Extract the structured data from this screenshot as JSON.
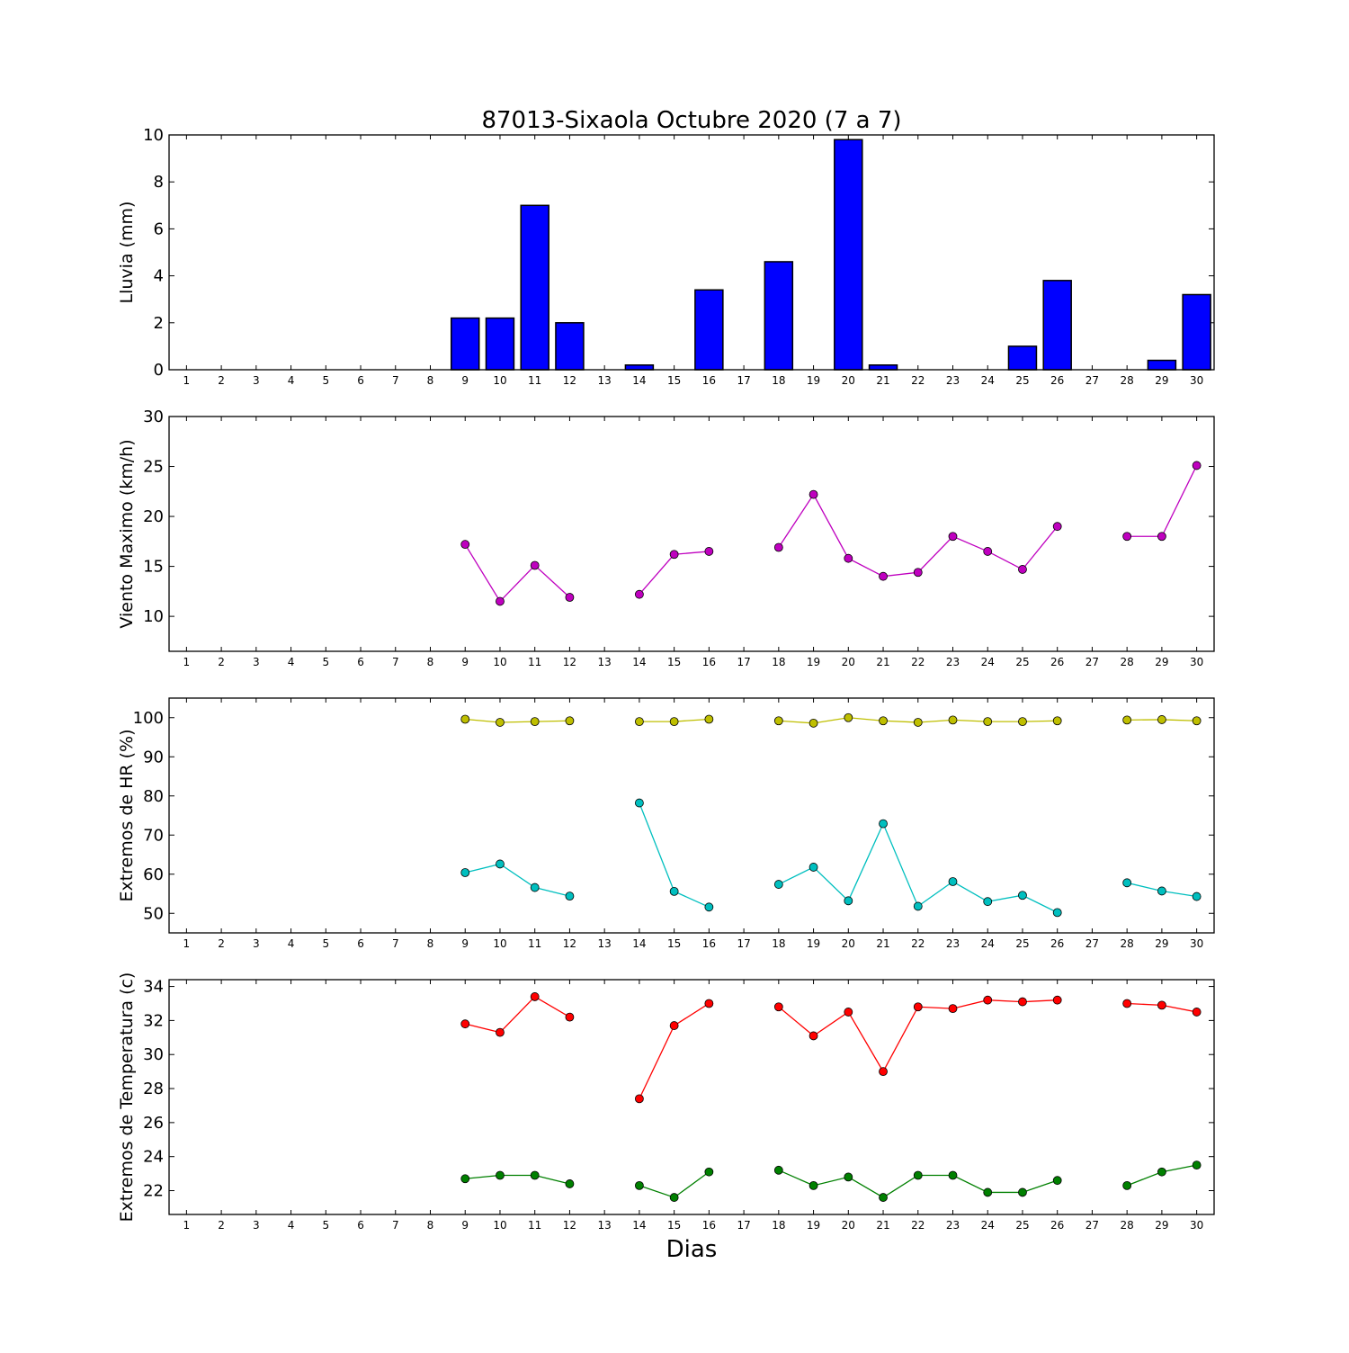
{
  "chart_data": {
    "title": "87013-Sixaola Octubre 2020  (7 a 7)",
    "xlabel": "Dias",
    "x": [
      1,
      2,
      3,
      4,
      5,
      6,
      7,
      8,
      9,
      10,
      11,
      12,
      13,
      14,
      15,
      16,
      17,
      18,
      19,
      20,
      21,
      22,
      23,
      24,
      25,
      26,
      27,
      28,
      29,
      30
    ],
    "panels": [
      {
        "type": "bar",
        "ylabel": "Lluvia (mm)",
        "ylim": [
          0,
          10
        ],
        "yticks": [
          0,
          2,
          4,
          6,
          8,
          10
        ],
        "series": [
          {
            "color": "#0000ff",
            "values": [
              0,
              0,
              0,
              0,
              0,
              0,
              0,
              0,
              2.2,
              2.2,
              7.0,
              2.0,
              0,
              0.2,
              0,
              3.4,
              0,
              4.6,
              0,
              9.8,
              0.2,
              0,
              0,
              0,
              1.0,
              3.8,
              0,
              0,
              0.4,
              3.2
            ]
          }
        ]
      },
      {
        "type": "line",
        "ylabel": "Viento Maximo (km/h)",
        "ylim": [
          6.5,
          30
        ],
        "yticks": [
          10,
          15,
          20,
          25,
          30
        ],
        "series": [
          {
            "color": "#bf00bf",
            "values": [
              null,
              null,
              null,
              null,
              null,
              null,
              null,
              null,
              17.2,
              11.5,
              15.1,
              11.9,
              null,
              12.2,
              16.2,
              16.5,
              null,
              16.9,
              22.2,
              15.8,
              14.0,
              14.4,
              18.0,
              16.5,
              14.7,
              19.0,
              null,
              18.0,
              18.0,
              25.1
            ]
          }
        ]
      },
      {
        "type": "line",
        "ylabel": "Extremos de HR (%)",
        "ylim": [
          45,
          105
        ],
        "yticks": [
          50,
          60,
          70,
          80,
          90,
          100
        ],
        "series": [
          {
            "color": "#bfbf00",
            "values": [
              null,
              null,
              null,
              null,
              null,
              null,
              null,
              null,
              99.6,
              98.8,
              99.0,
              99.2,
              null,
              99.0,
              99.0,
              99.6,
              null,
              99.2,
              98.6,
              100.0,
              99.2,
              98.8,
              99.4,
              99.0,
              99.0,
              99.2,
              null,
              99.4,
              99.5,
              99.2
            ]
          },
          {
            "color": "#00bfbf",
            "values": [
              null,
              null,
              null,
              null,
              null,
              null,
              null,
              null,
              60.4,
              62.6,
              56.6,
              54.4,
              null,
              78.2,
              55.6,
              51.6,
              null,
              57.4,
              61.8,
              53.2,
              72.9,
              51.8,
              58.1,
              53.0,
              54.6,
              50.2,
              null,
              57.8,
              55.7,
              54.3
            ]
          }
        ]
      },
      {
        "type": "line",
        "ylabel": "Extremos de Temperatura (c)",
        "ylim": [
          20.6,
          34.4
        ],
        "yticks": [
          22,
          24,
          26,
          28,
          30,
          32,
          34
        ],
        "series": [
          {
            "color": "#ff0000",
            "values": [
              null,
              null,
              null,
              null,
              null,
              null,
              null,
              null,
              31.8,
              31.3,
              33.4,
              32.2,
              null,
              27.4,
              31.7,
              33.0,
              null,
              32.8,
              31.1,
              32.5,
              29.0,
              32.8,
              32.7,
              33.2,
              33.1,
              33.2,
              null,
              33.0,
              32.9,
              32.5
            ]
          },
          {
            "color": "#008000",
            "values": [
              null,
              null,
              null,
              null,
              null,
              null,
              null,
              null,
              22.7,
              22.9,
              22.9,
              22.4,
              null,
              22.3,
              21.6,
              23.1,
              null,
              23.2,
              22.3,
              22.8,
              21.6,
              22.9,
              22.9,
              21.9,
              21.9,
              22.6,
              null,
              22.3,
              23.1,
              23.5
            ]
          }
        ]
      }
    ]
  }
}
